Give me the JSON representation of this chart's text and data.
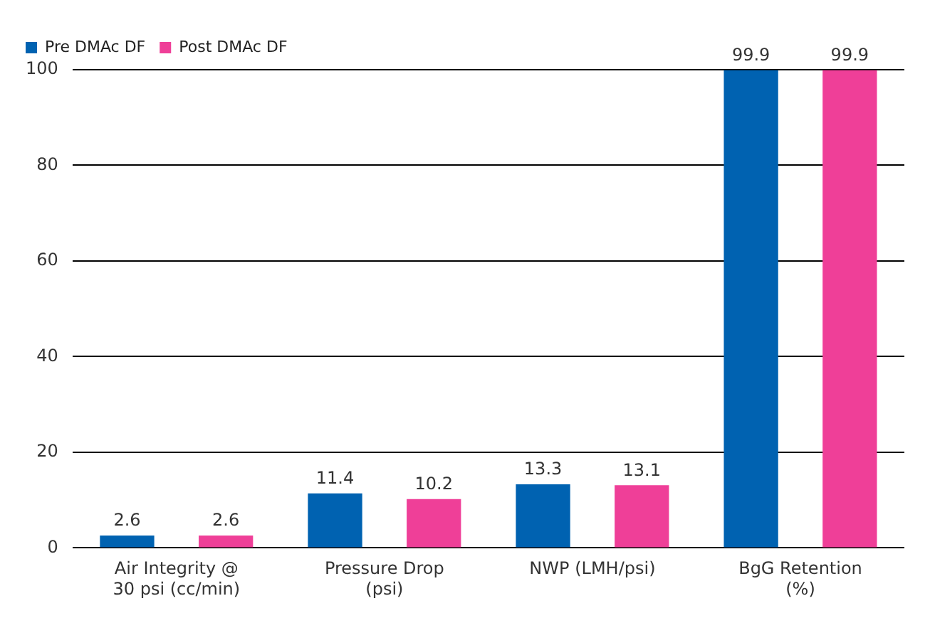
{
  "chart_data": {
    "type": "bar",
    "categories": [
      "Air Integrity @ 30 psi (cc/min)",
      "Pressure Drop (psi)",
      "NWP (LMH/psi)",
      "BgG Retention (%)"
    ],
    "series": [
      {
        "name": "Pre DMAc DF",
        "color": "#0062b1",
        "values": [
          2.6,
          11.4,
          13.3,
          99.9
        ]
      },
      {
        "name": "Post DMAc DF",
        "color": "#ef3f98",
        "values": [
          2.6,
          10.2,
          13.1,
          99.9
        ]
      }
    ],
    "ylim": [
      0,
      100
    ],
    "yticks": [
      0,
      20,
      40,
      60,
      80,
      100
    ],
    "grid": "y",
    "legend": "top left",
    "data_labels": true
  }
}
